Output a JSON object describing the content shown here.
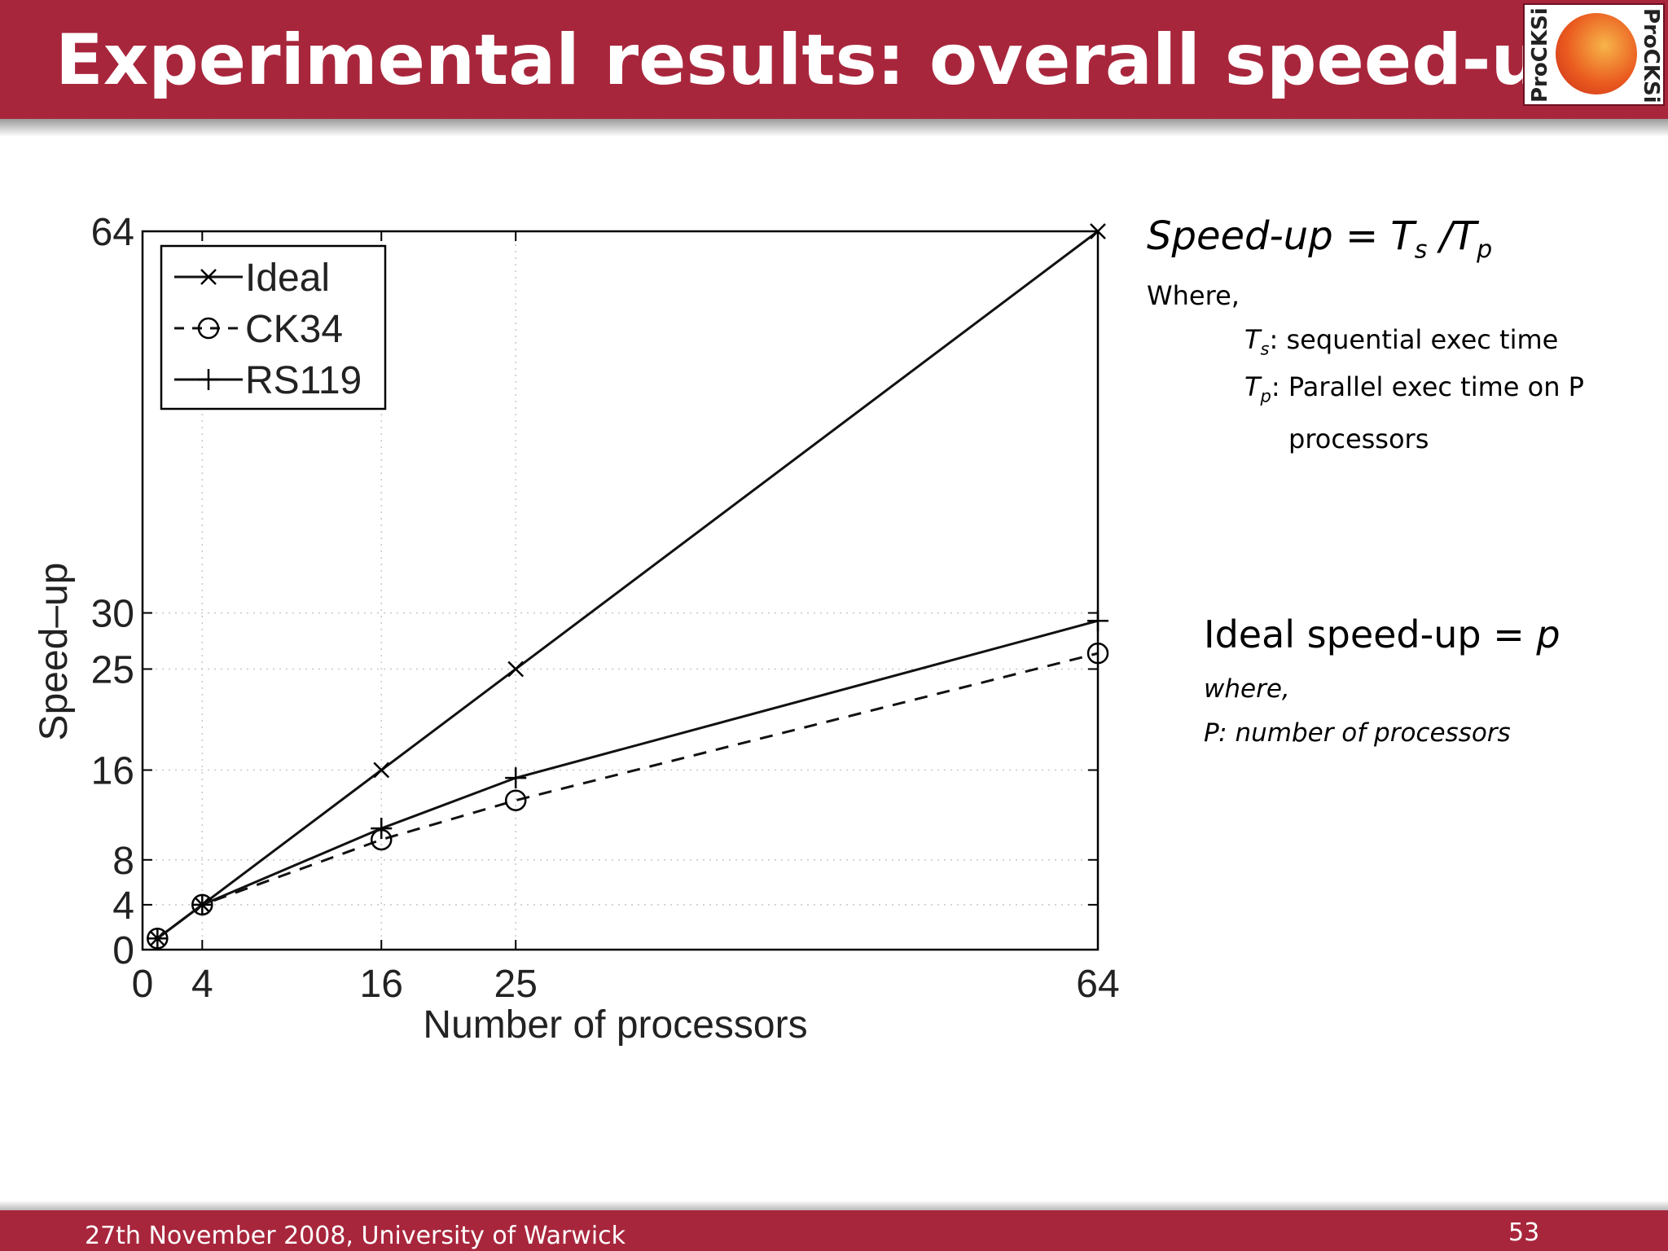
{
  "slide": {
    "title": "Experimental results: overall speed-up",
    "footer": "27th November 2008, University of Warwick",
    "page_number": "53",
    "logo_text": "ProCKSi",
    "colors": {
      "header": "#a8263c",
      "footer": "#a8263c"
    }
  },
  "notes": {
    "formula_lhs": "Speed-up = T",
    "formula_sub_s": "s",
    "formula_mid": " /T",
    "formula_sub_p": "p",
    "where": "Where,",
    "ts_var": "T",
    "ts_sub": "s",
    "ts_text": ": sequential exec time",
    "tp_var": "T",
    "tp_sub": "p",
    "tp_text": ": Parallel exec time on P",
    "tp_text2": "processors",
    "ideal_text": "Ideal speed-up = ",
    "ideal_var": "p",
    "where_lower": "where,",
    "p_def": "P: number of processors"
  },
  "chart_data": {
    "type": "line",
    "xlabel": "Number of processors",
    "ylabel": "Speed–up",
    "xlim": [
      0,
      64
    ],
    "ylim": [
      0,
      64
    ],
    "xticks": [
      0,
      4,
      16,
      25,
      64
    ],
    "yticks": [
      0,
      4,
      8,
      16,
      25,
      30,
      64
    ],
    "grid": true,
    "legend_position": "top-left",
    "series": [
      {
        "name": "Ideal",
        "marker": "x",
        "dash": "solid",
        "x": [
          1,
          4,
          16,
          25,
          64
        ],
        "y": [
          1,
          4,
          16,
          25,
          64
        ]
      },
      {
        "name": "CK34",
        "marker": "o",
        "dash": "dashed",
        "x": [
          1,
          4,
          16,
          25,
          64
        ],
        "y": [
          1,
          4,
          9.8,
          13.3,
          26.4
        ]
      },
      {
        "name": "RS119",
        "marker": "+",
        "dash": "solid",
        "x": [
          1,
          4,
          16,
          25,
          64
        ],
        "y": [
          1,
          4,
          10.8,
          15.3,
          29.3
        ]
      }
    ]
  }
}
